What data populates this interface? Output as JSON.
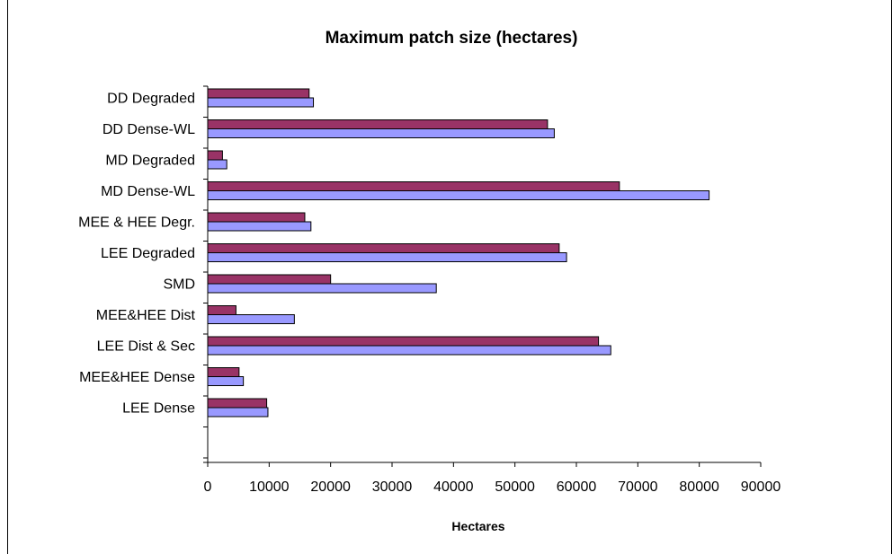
{
  "chart_data": {
    "type": "bar",
    "orientation": "horizontal",
    "title": "Maximum patch size (hectares)",
    "xlabel": "Hectares",
    "ylabel": "",
    "xlim": [
      0,
      90000
    ],
    "xticks": [
      0,
      10000,
      20000,
      30000,
      40000,
      50000,
      60000,
      70000,
      80000,
      90000
    ],
    "grid": false,
    "legend": "none",
    "categories": [
      "DD Degraded",
      "DD Dense-WL",
      "MD Degraded",
      "MD Dense-WL",
      "MEE & HEE Degr.",
      "LEE Degraded",
      "SMD",
      "MEE&HEE Dist",
      "LEE Dist & Sec",
      "MEE&HEE Dense",
      "LEE Dense"
    ],
    "series": [
      {
        "color": "#993366",
        "values": [
          16500,
          55300,
          2400,
          67000,
          15800,
          57200,
          20000,
          4600,
          63600,
          5100,
          9600
        ]
      },
      {
        "color": "#9999FF",
        "values": [
          17200,
          56400,
          3100,
          81600,
          16800,
          58400,
          37200,
          14100,
          65600,
          5800,
          9800
        ]
      }
    ]
  }
}
